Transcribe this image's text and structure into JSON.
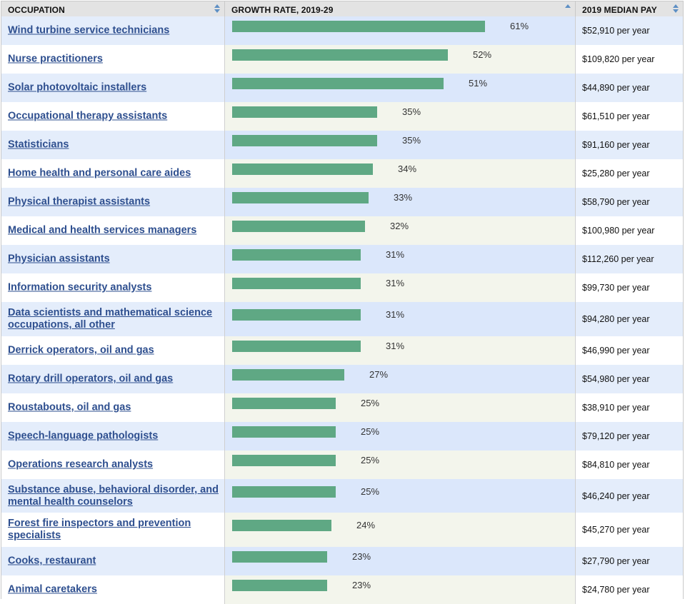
{
  "headers": {
    "occupation": "OCCUPATION",
    "growth": "GROWTH RATE, 2019-29",
    "pay": "2019 MEDIAN PAY"
  },
  "colors": {
    "bar": "#5fa884",
    "row_blue": "#e4edfb",
    "row_white": "#ffffff",
    "bar_blue": "#dbe7fb",
    "bar_cream": "#f3f5ec",
    "link": "#2e4f8f"
  },
  "rows": [
    {
      "occupation": "Wind turbine service technicians",
      "growth": 61,
      "growth_label": "61%",
      "pay": "$52,910 per year"
    },
    {
      "occupation": "Nurse practitioners",
      "growth": 52,
      "growth_label": "52%",
      "pay": "$109,820 per year"
    },
    {
      "occupation": "Solar photovoltaic installers",
      "growth": 51,
      "growth_label": "51%",
      "pay": "$44,890 per year"
    },
    {
      "occupation": "Occupational therapy assistants",
      "growth": 35,
      "growth_label": "35%",
      "pay": "$61,510 per year"
    },
    {
      "occupation": "Statisticians",
      "growth": 35,
      "growth_label": "35%",
      "pay": "$91,160 per year"
    },
    {
      "occupation": "Home health and personal care aides",
      "growth": 34,
      "growth_label": "34%",
      "pay": "$25,280 per year"
    },
    {
      "occupation": "Physical therapist assistants",
      "growth": 33,
      "growth_label": "33%",
      "pay": "$58,790 per year"
    },
    {
      "occupation": "Medical and health services managers",
      "growth": 32,
      "growth_label": "32%",
      "pay": "$100,980 per year"
    },
    {
      "occupation": "Physician assistants",
      "growth": 31,
      "growth_label": "31%",
      "pay": "$112,260 per year"
    },
    {
      "occupation": "Information security analysts",
      "growth": 31,
      "growth_label": "31%",
      "pay": "$99,730 per year"
    },
    {
      "occupation": "Data scientists and mathematical science occupations, all other",
      "growth": 31,
      "growth_label": "31%",
      "pay": "$94,280 per year"
    },
    {
      "occupation": "Derrick operators, oil and gas",
      "growth": 31,
      "growth_label": "31%",
      "pay": "$46,990 per year"
    },
    {
      "occupation": "Rotary drill operators, oil and gas",
      "growth": 27,
      "growth_label": "27%",
      "pay": "$54,980 per year"
    },
    {
      "occupation": "Roustabouts, oil and gas",
      "growth": 25,
      "growth_label": "25%",
      "pay": "$38,910 per year"
    },
    {
      "occupation": "Speech-language pathologists",
      "growth": 25,
      "growth_label": "25%",
      "pay": "$79,120 per year"
    },
    {
      "occupation": "Operations research analysts",
      "growth": 25,
      "growth_label": "25%",
      "pay": "$84,810 per year"
    },
    {
      "occupation": "Substance abuse, behavioral disorder, and mental health counselors",
      "growth": 25,
      "growth_label": "25%",
      "pay": "$46,240 per year"
    },
    {
      "occupation": "Forest fire inspectors and prevention specialists",
      "growth": 24,
      "growth_label": "24%",
      "pay": "$45,270 per year"
    },
    {
      "occupation": "Cooks, restaurant",
      "growth": 23,
      "growth_label": "23%",
      "pay": "$27,790 per year"
    },
    {
      "occupation": "Animal caretakers",
      "growth": 23,
      "growth_label": "23%",
      "pay": "$24,780 per year"
    }
  ]
}
